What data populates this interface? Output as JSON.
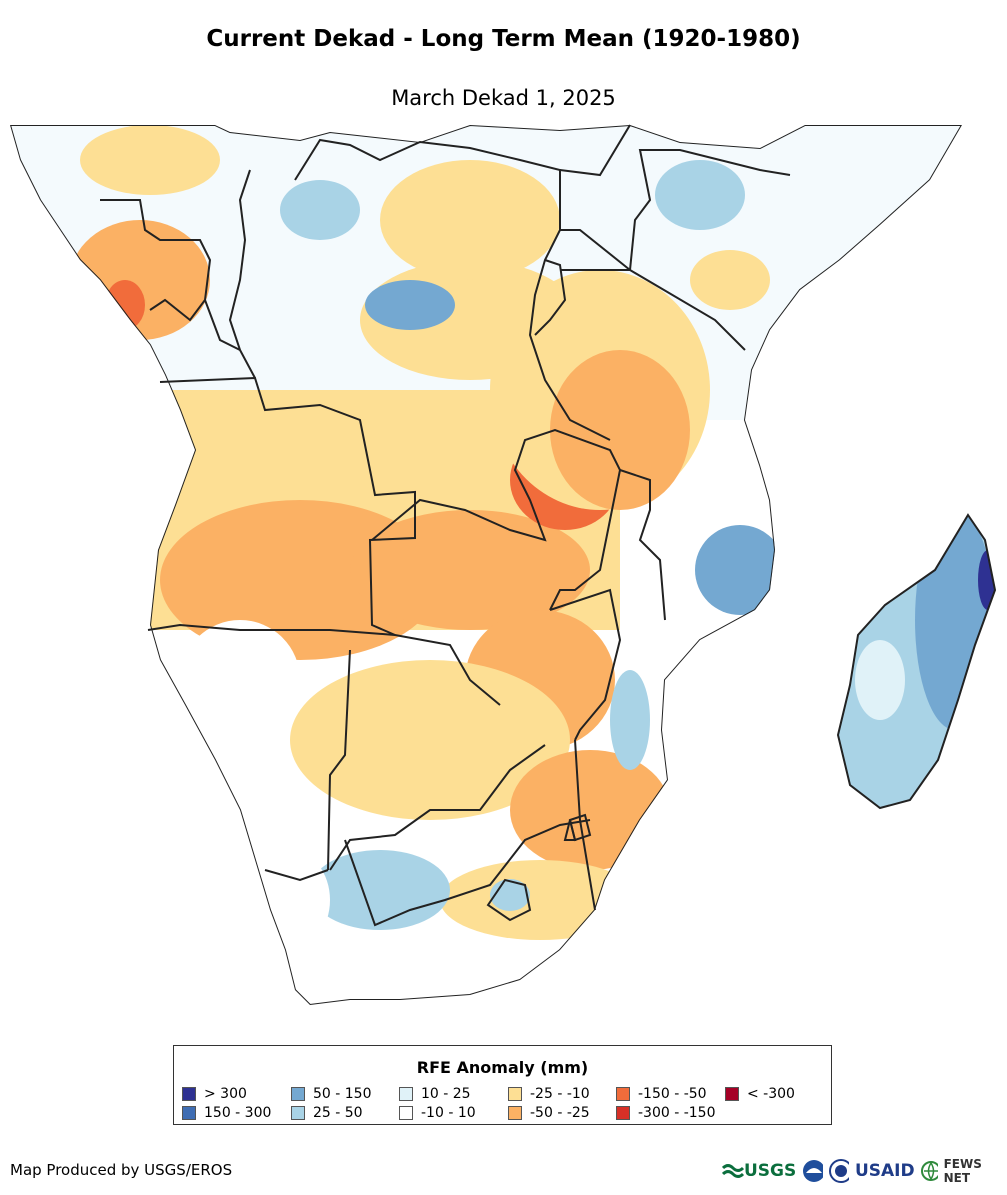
{
  "header": {
    "title": "Current Dekad - Long Term Mean (1920-1980)",
    "subtitle": "March Dekad 1, 2025"
  },
  "legend": {
    "title": "RFE Anomaly (mm)",
    "items": [
      {
        "label": "> 300",
        "color": "#2e3192"
      },
      {
        "label": "150 - 300",
        "color": "#3f6db3"
      },
      {
        "label": "50 - 150",
        "color": "#74a8d1"
      },
      {
        "label": "25 - 50",
        "color": "#a9d3e6"
      },
      {
        "label": "10 - 25",
        "color": "#e0f2f8"
      },
      {
        "label": "-10 - 10",
        "color": "#ffffff"
      },
      {
        "label": "-25 - -10",
        "color": "#fddf94"
      },
      {
        "label": "-50 - -25",
        "color": "#fbb164"
      },
      {
        "label": "-150 - -50",
        "color": "#f16c3b"
      },
      {
        "label": "-300 - -150",
        "color": "#d73027"
      },
      {
        "label": "< -300",
        "color": "#a50026"
      }
    ]
  },
  "footer": {
    "credit": "Map Produced by USGS/EROS"
  },
  "logos": {
    "usgs": "USGS",
    "usaid": "USAID",
    "fewsnet": "FEWS NET"
  }
}
